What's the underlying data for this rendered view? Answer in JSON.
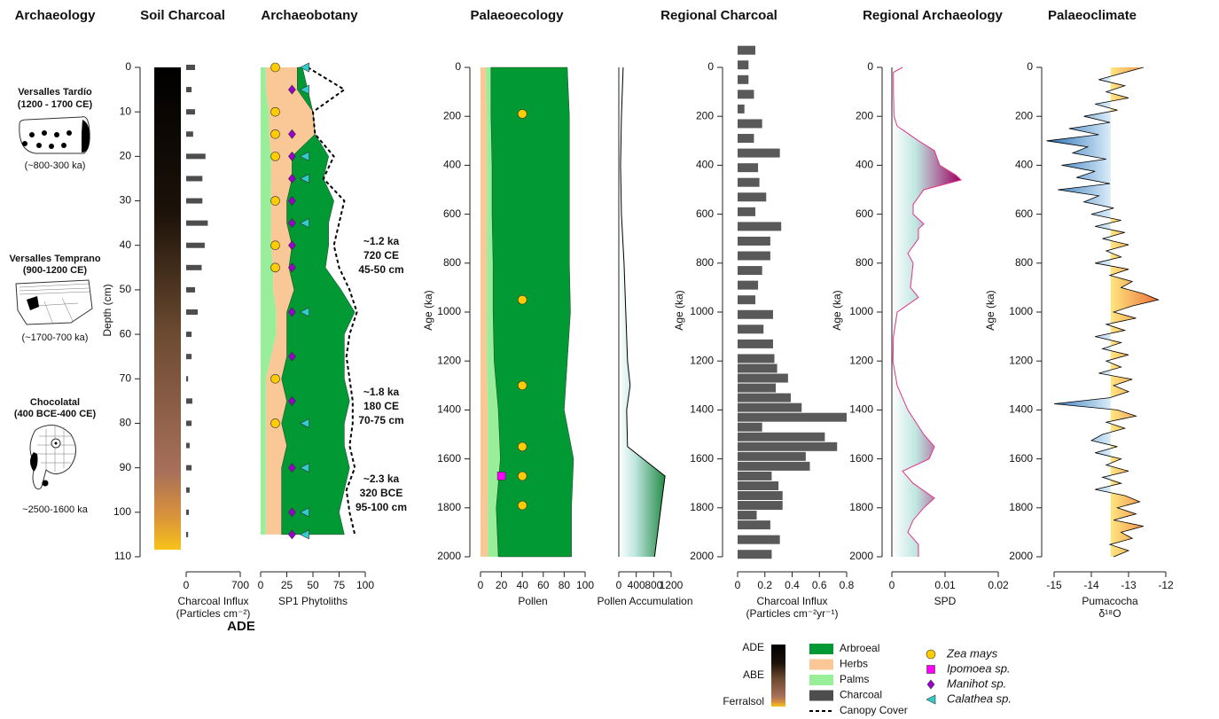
{
  "archaeology": {
    "title": "Archaeology",
    "phases": [
      {
        "name": "Versalles Tardío",
        "period": "(1200 - 1700 CE)",
        "age": "(~800-300 ka)"
      },
      {
        "name": "Versalles Temprano",
        "period": "(900-1200 CE)",
        "age": "(~1700-700 ka)"
      },
      {
        "name": "Chocolatal",
        "period": "(400 BCE-400 CE)",
        "age": "~2500-1600 ka"
      }
    ]
  },
  "chart_data": [
    {
      "type": "hbar",
      "title": "Soil Charcoal",
      "ylabel": "Depth (cm)",
      "xlabel": [
        "Charcoal Influx",
        "(Particles cm⁻²)"
      ],
      "note": "ADE",
      "color": "#4d4d4d",
      "y": [
        0,
        5,
        10,
        15,
        20,
        25,
        30,
        35,
        40,
        45,
        50,
        55,
        60,
        65,
        70,
        75,
        80,
        85,
        90,
        95,
        100,
        105
      ],
      "values": [
        115,
        70,
        115,
        90,
        250,
        210,
        210,
        280,
        240,
        200,
        115,
        150,
        70,
        70,
        25,
        80,
        70,
        45,
        70,
        45,
        35,
        25
      ],
      "xlim": [
        0,
        700
      ],
      "xticks": [
        0,
        700
      ],
      "ylim": [
        0,
        110
      ],
      "yticks": [
        0,
        10,
        20,
        30,
        40,
        50,
        60,
        70,
        80,
        90,
        100,
        110
      ]
    },
    {
      "type": "stacked_area_h",
      "title": "Archaeobotany",
      "xlabel": "SP1 Phytoliths",
      "y": [
        0,
        5,
        10,
        15,
        20,
        25,
        30,
        35,
        40,
        45,
        50,
        55,
        60,
        65,
        70,
        75,
        80,
        85,
        90,
        95,
        100,
        105
      ],
      "series": [
        {
          "color": "#99ee99",
          "values": [
            5,
            5,
            8,
            8,
            10,
            10,
            10,
            10,
            10,
            12,
            12,
            15,
            15,
            10,
            5,
            5,
            5,
            5,
            5,
            5,
            5,
            5
          ]
        },
        {
          "color": "#f9c896",
          "values": [
            30,
            30,
            42,
            44,
            20,
            20,
            15,
            15,
            20,
            15,
            20,
            10,
            10,
            15,
            15,
            20,
            15,
            20,
            15,
            15,
            15,
            15
          ]
        },
        {
          "color": "#009933",
          "values": [
            5,
            10,
            0,
            0,
            35,
            30,
            45,
            40,
            35,
            35,
            45,
            65,
            55,
            55,
            60,
            60,
            60,
            55,
            65,
            60,
            55,
            60
          ]
        }
      ],
      "lines": [
        {
          "color": "#000000",
          "dashed": true,
          "values": [
            45,
            80,
            50,
            52,
            70,
            60,
            80,
            75,
            70,
            75,
            85,
            92,
            85,
            82,
            85,
            88,
            88,
            85,
            90,
            82,
            85,
            90
          ]
        }
      ],
      "markers": [
        {
          "shape": "circle",
          "color": "#ffcc00",
          "y": [
            0,
            10,
            15,
            20,
            30,
            40,
            45,
            70,
            80
          ]
        },
        {
          "shape": "diamond",
          "color": "#9900cc",
          "y": [
            5,
            15,
            20,
            25,
            30,
            35,
            40,
            45,
            55,
            65,
            75,
            90,
            100,
            105
          ]
        },
        {
          "shape": "triangle",
          "color": "#33cccc",
          "y": [
            0,
            5,
            20,
            25,
            35,
            55,
            80,
            90,
            100,
            105
          ]
        }
      ],
      "annotations": [
        [
          "~1.2 ka",
          "720 CE",
          "45-50 cm"
        ],
        [
          "~1.8 ka",
          "180 CE",
          "70-75 cm"
        ],
        [
          "~2.3 ka",
          "320 BCE",
          "95-100 cm"
        ]
      ],
      "xlim": [
        0,
        100
      ],
      "xticks": [
        0,
        25,
        50,
        75,
        100
      ],
      "ylim": [
        0,
        110
      ]
    },
    {
      "type": "stacked_area_h",
      "title": "Palaeoecology",
      "xlabel": "Pollen",
      "ylabel": "Age (ka)",
      "y": [
        0,
        200,
        400,
        600,
        800,
        1000,
        1200,
        1400,
        1600,
        1800,
        2000
      ],
      "series": [
        {
          "color": "#f9c896",
          "values": [
            5,
            6,
            6,
            6,
            6,
            6,
            6,
            7,
            7,
            7,
            7
          ]
        },
        {
          "color": "#99ee99",
          "values": [
            5,
            4,
            5,
            5,
            6,
            6,
            7,
            10,
            12,
            8,
            10
          ]
        },
        {
          "color": "#009933",
          "values": [
            73,
            75,
            74,
            74,
            73,
            74,
            70,
            63,
            70,
            72,
            70
          ]
        }
      ],
      "markers": [
        {
          "shape": "circle",
          "color": "#ffcc00",
          "y": [
            190,
            950,
            1300,
            1550,
            1670,
            1790
          ]
        },
        {
          "shape": "square",
          "color": "#ff00ff",
          "y": [
            1670
          ]
        }
      ],
      "xlim": [
        0,
        100
      ],
      "xticks": [
        0,
        20,
        40,
        60,
        80,
        100
      ],
      "ylim": [
        0,
        2000
      ],
      "yticks": [
        0,
        200,
        400,
        600,
        800,
        1000,
        1200,
        1400,
        1600,
        1800,
        2000
      ]
    },
    {
      "type": "area_h",
      "xlabel": "Pollen Accumulation",
      "color": "#238b45",
      "line_color": "#000000",
      "y": [
        0,
        200,
        400,
        600,
        800,
        1000,
        1200,
        1300,
        1400,
        1550,
        1670,
        2000
      ],
      "values": [
        100,
        60,
        40,
        60,
        120,
        160,
        200,
        260,
        180,
        200,
        1060,
        820
      ],
      "xlim": [
        0,
        1200
      ],
      "xticks": [
        0,
        400,
        800,
        1200
      ],
      "ylim": [
        0,
        2000
      ]
    },
    {
      "type": "hbar",
      "title": "Regional Charcoal",
      "ylabel": "Age (ka)",
      "xlabel": [
        "Charcoal Influx",
        "(Particles cm⁻²yr⁻¹)"
      ],
      "color": "#595959",
      "y": [
        -70,
        -10,
        50,
        110,
        170,
        230,
        290,
        350,
        410,
        470,
        530,
        590,
        650,
        710,
        770,
        830,
        890,
        950,
        1010,
        1070,
        1130,
        1190,
        1230,
        1270,
        1310,
        1350,
        1390,
        1430,
        1470,
        1510,
        1550,
        1590,
        1630,
        1670,
        1710,
        1750,
        1790,
        1830,
        1870,
        1930,
        1990
      ],
      "values": [
        0.13,
        0.08,
        0.08,
        0.12,
        0.05,
        0.18,
        0.12,
        0.31,
        0.15,
        0.16,
        0.21,
        0.13,
        0.32,
        0.24,
        0.24,
        0.18,
        0.15,
        0.13,
        0.26,
        0.19,
        0.26,
        0.27,
        0.29,
        0.37,
        0.28,
        0.39,
        0.47,
        0.8,
        0.18,
        0.64,
        0.73,
        0.5,
        0.53,
        0.25,
        0.3,
        0.33,
        0.33,
        0.14,
        0.24,
        0.31,
        0.25
      ],
      "xlim": [
        0,
        0.8
      ],
      "xticks": [
        0,
        0.2,
        0.4,
        0.6,
        0.8
      ],
      "ylim": [
        0,
        2000
      ],
      "yticks": [
        0,
        200,
        400,
        600,
        800,
        1000,
        1200,
        1400,
        1600,
        1800,
        2000
      ]
    },
    {
      "type": "area_h",
      "title": "Regional Archaeology",
      "ylabel": "Age (ka)",
      "xlabel": "SPD",
      "color": "#9c0060",
      "line_color": "#e0338a",
      "y": [
        0,
        20,
        100,
        200,
        240,
        300,
        340,
        400,
        440,
        460,
        500,
        560,
        600,
        640,
        660,
        700,
        760,
        800,
        900,
        940,
        1000,
        1100,
        1200,
        1300,
        1400,
        1500,
        1550,
        1600,
        1650,
        1700,
        1760,
        1800,
        1850,
        1900,
        1950,
        2000
      ],
      "values": [
        0.002,
        0.0003,
        0.0003,
        0.0004,
        0.001,
        0.005,
        0.008,
        0.009,
        0.012,
        0.013,
        0.006,
        0.004,
        0.004,
        0.006,
        0.005,
        0.005,
        0.003,
        0.004,
        0.0035,
        0.005,
        0.001,
        0.0003,
        0.0002,
        0.001,
        0.003,
        0.006,
        0.008,
        0.007,
        0.002,
        0.004,
        0.008,
        0.006,
        0.004,
        0.003,
        0.005,
        0.005
      ],
      "xlim": [
        0,
        0.02
      ],
      "xticks": [
        0,
        0.01,
        0.02
      ],
      "ylim": [
        0,
        2000
      ],
      "yticks": [
        0,
        200,
        400,
        600,
        800,
        1000,
        1200,
        1400,
        1600,
        1800,
        2000
      ]
    },
    {
      "type": "line_h",
      "title": "Palaeoclimate",
      "ylabel": "Age (ka)",
      "xlabel": [
        "Pumacocha",
        "δ¹⁸O"
      ],
      "color": "#000000",
      "below_color": "#3d7fc0",
      "above_color": "#e8602c",
      "y": [
        0,
        25,
        50,
        75,
        100,
        125,
        150,
        175,
        200,
        225,
        250,
        275,
        300,
        325,
        350,
        375,
        400,
        425,
        450,
        475,
        500,
        525,
        550,
        575,
        600,
        625,
        650,
        675,
        700,
        725,
        750,
        775,
        800,
        825,
        850,
        875,
        900,
        925,
        950,
        975,
        1000,
        1025,
        1050,
        1075,
        1100,
        1125,
        1150,
        1175,
        1200,
        1225,
        1250,
        1275,
        1300,
        1325,
        1350,
        1375,
        1400,
        1425,
        1450,
        1475,
        1500,
        1525,
        1550,
        1575,
        1600,
        1625,
        1650,
        1675,
        1700,
        1725,
        1750,
        1775,
        1800,
        1825,
        1850,
        1875,
        1900,
        1925,
        1950,
        1975,
        2000
      ],
      "values": [
        -12.6,
        -13.2,
        -13.8,
        -13.1,
        -13.6,
        -13.0,
        -13.9,
        -13.3,
        -14.2,
        -13.5,
        -14.6,
        -13.8,
        -15.2,
        -14.1,
        -14.5,
        -13.6,
        -14.8,
        -13.9,
        -14.4,
        -13.5,
        -14.9,
        -13.8,
        -14.2,
        -13.4,
        -14.0,
        -13.2,
        -13.9,
        -13.1,
        -13.7,
        -13.0,
        -13.6,
        -13.2,
        -13.9,
        -13.0,
        -13.5,
        -12.9,
        -13.2,
        -12.6,
        -12.2,
        -12.9,
        -13.4,
        -12.8,
        -13.6,
        -13.1,
        -13.9,
        -13.2,
        -13.7,
        -13.0,
        -13.6,
        -13.2,
        -13.8,
        -12.9,
        -13.4,
        -13.0,
        -13.5,
        -15.0,
        -13.3,
        -12.8,
        -13.6,
        -13.1,
        -13.7,
        -14.0,
        -13.3,
        -13.9,
        -13.2,
        -13.6,
        -13.0,
        -13.7,
        -13.2,
        -13.9,
        -13.1,
        -12.7,
        -13.3,
        -12.8,
        -13.4,
        -12.6,
        -13.2,
        -12.9,
        -13.5,
        -13.0,
        -13.4
      ],
      "xlim": [
        -15,
        -12
      ],
      "xticks": [
        -15,
        -14,
        -13,
        -12
      ],
      "ylim": [
        0,
        2000
      ],
      "yticks": [
        0,
        200,
        400,
        600,
        800,
        1000,
        1200,
        1400,
        1600,
        1800,
        2000
      ]
    }
  ],
  "legend": {
    "scale": [
      "ADE",
      "ABE",
      "Ferralsol"
    ],
    "fills": [
      {
        "name": "Arbroeal",
        "color": "#009933"
      },
      {
        "name": "Herbs",
        "color": "#f9c896"
      },
      {
        "name": "Palms",
        "color": "#99ee99"
      },
      {
        "name": "Charcoal",
        "color": "#4d4d4d"
      }
    ],
    "line": {
      "name": "Canopy Cover"
    },
    "markers": [
      {
        "name": "Zea mays",
        "shape": "circle",
        "color": "#ffcc00"
      },
      {
        "name": "Ipomoea sp.",
        "shape": "square",
        "color": "#ff00ff"
      },
      {
        "name": "Manihot sp.",
        "shape": "diamond",
        "color": "#9900cc"
      },
      {
        "name": "Calathea sp.",
        "shape": "triangle",
        "color": "#33cccc"
      }
    ]
  }
}
